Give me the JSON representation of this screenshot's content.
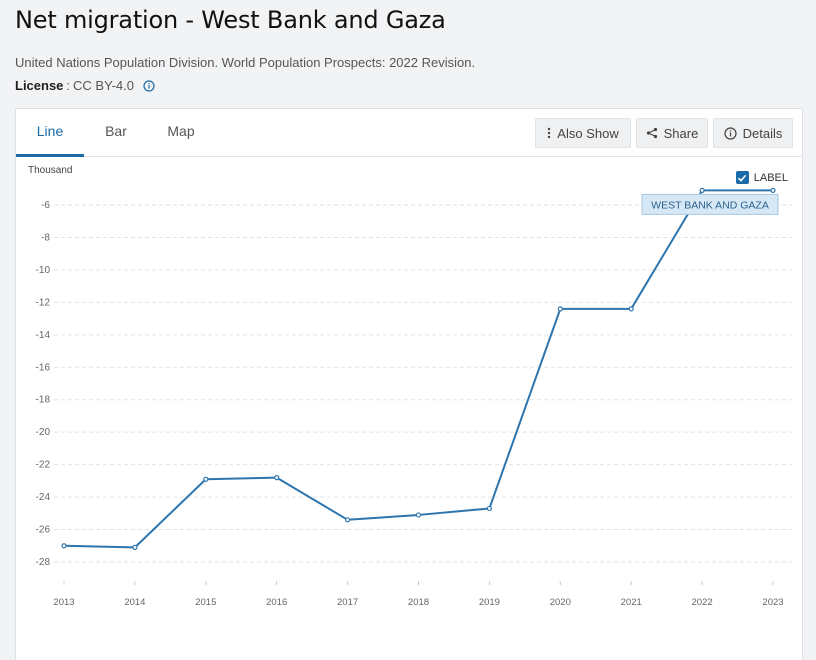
{
  "page": {
    "title": "Net migration - West Bank and Gaza",
    "source": "United Nations Population Division. World Population Prospects: 2022 Revision.",
    "license_label": "License",
    "license_sep": ":",
    "license_value": "CC BY-4.0"
  },
  "tabs": [
    "Line",
    "Bar",
    "Map"
  ],
  "toolbar": {
    "also_show": "Also Show",
    "share": "Share",
    "details": "Details"
  },
  "chart_meta": {
    "unit": "Thousand",
    "label_toggle": "LABEL",
    "line_color": "#2e75ad"
  },
  "chart_data": {
    "type": "line",
    "x": [
      "2013",
      "2014",
      "2015",
      "2016",
      "2017",
      "2018",
      "2019",
      "2020",
      "2021",
      "2022",
      "2023"
    ],
    "series": [
      {
        "name": "WEST BANK AND GAZA",
        "values": [
          -27.0,
          -27.1,
          -22.9,
          -22.8,
          -25.4,
          -25.1,
          -24.7,
          -12.4,
          -12.4,
          -5.1,
          -5.1
        ]
      }
    ],
    "yticks": [
      -6,
      -8,
      -10,
      -12,
      -14,
      -16,
      -18,
      -20,
      -22,
      -24,
      -26,
      -28
    ],
    "ylim": [
      -28,
      -6
    ],
    "ylabel": "Thousand",
    "grid": true,
    "legend_position": "top-right"
  }
}
